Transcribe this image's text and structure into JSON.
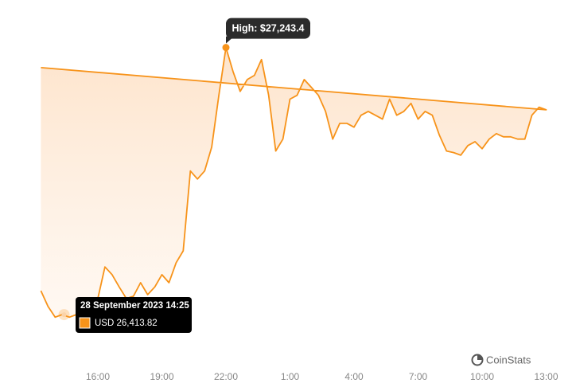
{
  "chart_data": {
    "type": "area",
    "x": [
      "13:20",
      "13:40",
      "14:00",
      "14:20",
      "14:40",
      "15:00",
      "15:20",
      "15:40",
      "16:00",
      "16:20",
      "16:40",
      "17:00",
      "17:20",
      "17:40",
      "18:00",
      "18:20",
      "18:40",
      "19:00",
      "19:20",
      "19:40",
      "20:00",
      "20:20",
      "20:40",
      "21:00",
      "21:20",
      "21:40",
      "22:00",
      "22:20",
      "22:40",
      "23:00",
      "23:20",
      "23:40",
      "0:00",
      "0:20",
      "0:40",
      "1:00",
      "1:20",
      "1:40",
      "2:00",
      "2:20",
      "2:40",
      "3:00",
      "3:20",
      "3:40",
      "4:00",
      "4:20",
      "4:40",
      "5:00",
      "5:20",
      "5:40",
      "6:00",
      "6:20",
      "6:40",
      "7:00",
      "7:20",
      "7:40",
      "8:00",
      "8:20",
      "8:40",
      "9:00",
      "9:20",
      "9:40",
      "10:00",
      "10:20",
      "10:40",
      "11:00",
      "11:20",
      "11:40",
      "12:00",
      "12:20",
      "12:40",
      "13:00",
      "13:20"
    ],
    "series": [
      {
        "color": "#f7931a",
        "values": [
          26488,
          26439,
          26406,
          26414,
          26406,
          26414,
          26426,
          26439,
          26464,
          26562,
          26538,
          26500,
          26464,
          26471,
          26513,
          26476,
          26500,
          26538,
          26513,
          26575,
          26612,
          26860,
          26835,
          26860,
          26934,
          27095,
          27243.4,
          27169,
          27107,
          27144,
          27157,
          27206,
          27095,
          26922,
          26959,
          27083,
          27095,
          27144,
          27120,
          27095,
          27045,
          26959,
          27008,
          27008,
          26996,
          27033,
          27045,
          27033,
          27021,
          27083,
          27033,
          27045,
          27070,
          27021,
          27045,
          27033,
          26971,
          26922,
          26917,
          26909,
          26939,
          26951,
          26929,
          26959,
          26976,
          26966,
          26966,
          26959,
          26959,
          27033,
          27058,
          27050,
          27181
        ]
      }
    ],
    "xticks": [
      "16:00",
      "19:00",
      "22:00",
      "1:00",
      "4:00",
      "7:00",
      "10:00",
      "13:00"
    ],
    "ylim": [
      26330,
      27250
    ],
    "high": {
      "label": "High: $27,243.4",
      "value": 27243.4
    },
    "tooltip": {
      "title": "28 September 2023 14:25",
      "label": "USD 26,413.82",
      "value": 26413.82
    },
    "watermark": "CoinStats"
  }
}
